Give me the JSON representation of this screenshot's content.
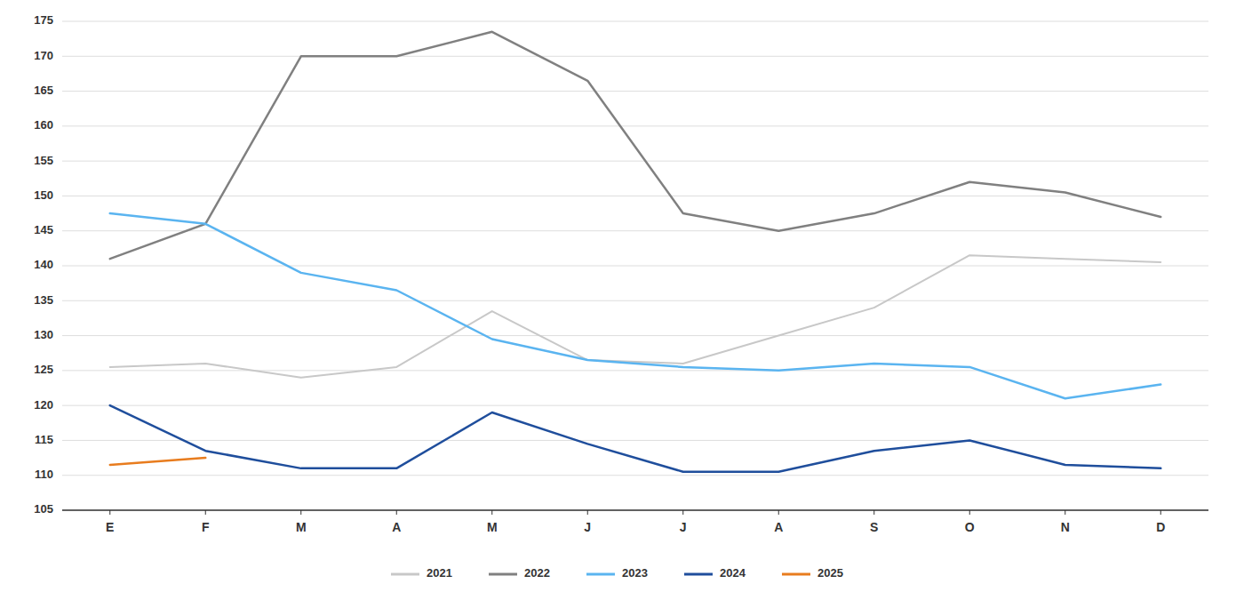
{
  "chart_data": {
    "type": "line",
    "categories": [
      "E",
      "F",
      "M",
      "A",
      "M",
      "J",
      "J",
      "A",
      "S",
      "O",
      "N",
      "D"
    ],
    "series": [
      {
        "name": "2021",
        "color": "#c8c8c8",
        "values": [
          125.5,
          126.0,
          124.0,
          125.5,
          133.5,
          126.5,
          126.0,
          130.0,
          134.0,
          141.5,
          141.0,
          140.5
        ]
      },
      {
        "name": "2022",
        "color": "#808080",
        "values": [
          141.0,
          146.0,
          170.0,
          170.0,
          173.5,
          166.5,
          147.5,
          145.0,
          147.5,
          152.0,
          150.5,
          147.0
        ]
      },
      {
        "name": "2023",
        "color": "#5ab4f0",
        "values": [
          147.5,
          146.0,
          139.0,
          136.5,
          129.5,
          126.5,
          125.5,
          125.0,
          126.0,
          125.5,
          121.0,
          123.0
        ]
      },
      {
        "name": "2024",
        "color": "#1f4e9c",
        "values": [
          120.0,
          113.5,
          111.0,
          111.0,
          119.0,
          114.5,
          110.5,
          110.5,
          113.5,
          115.0,
          111.5,
          111.0
        ]
      },
      {
        "name": "2025",
        "color": "#e87c1e",
        "values": [
          111.5,
          112.5,
          null,
          null,
          null,
          null,
          null,
          null,
          null,
          null,
          null,
          null
        ]
      }
    ],
    "ylim": [
      105,
      175
    ],
    "yticks": [
      105,
      110,
      115,
      120,
      125,
      130,
      135,
      140,
      145,
      150,
      155,
      160,
      165,
      170,
      175
    ],
    "grid": true,
    "legend": "bottom"
  }
}
